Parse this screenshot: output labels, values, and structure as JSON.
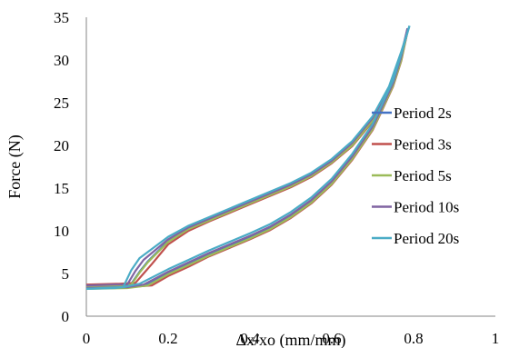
{
  "chart_data": {
    "type": "line",
    "title": "",
    "xlabel": "Δx/xo (mm/mm)",
    "ylabel": "Force (N)",
    "xlim": [
      0,
      1
    ],
    "ylim": [
      0,
      35
    ],
    "x_ticks": [
      "0",
      "0.2",
      "0.4",
      "0.6",
      "0.8",
      "1"
    ],
    "y_ticks": [
      "0",
      "5",
      "10",
      "15",
      "20",
      "25",
      "30",
      "35"
    ],
    "grid": false,
    "legend_position": "right",
    "series": [
      {
        "name": "Period 2s",
        "color": "#4472C4",
        "loading": [
          [
            0,
            3.6
          ],
          [
            0.08,
            3.7
          ],
          [
            0.11,
            3.8
          ],
          [
            0.13,
            5.2
          ],
          [
            0.15,
            6.4
          ],
          [
            0.2,
            8.8
          ],
          [
            0.25,
            10.3
          ],
          [
            0.3,
            11.3
          ],
          [
            0.35,
            12.3
          ],
          [
            0.4,
            13.3
          ],
          [
            0.45,
            14.3
          ],
          [
            0.5,
            15.3
          ],
          [
            0.55,
            16.5
          ],
          [
            0.6,
            18.1
          ],
          [
            0.65,
            20.2
          ],
          [
            0.7,
            23.1
          ],
          [
            0.74,
            26.6
          ],
          [
            0.77,
            30.6
          ],
          [
            0.785,
            33.6
          ]
        ],
        "unloading": [
          [
            0.785,
            33.6
          ],
          [
            0.77,
            30.3
          ],
          [
            0.75,
            27.2
          ],
          [
            0.72,
            24.1
          ],
          [
            0.7,
            22.1
          ],
          [
            0.65,
            18.6
          ],
          [
            0.6,
            15.7
          ],
          [
            0.55,
            13.5
          ],
          [
            0.5,
            11.8
          ],
          [
            0.45,
            10.4
          ],
          [
            0.4,
            9.3
          ],
          [
            0.35,
            8.3
          ],
          [
            0.3,
            7.3
          ],
          [
            0.25,
            6.2
          ],
          [
            0.2,
            5.1
          ],
          [
            0.15,
            3.7
          ],
          [
            0.1,
            3.4
          ],
          [
            0,
            3.3
          ]
        ]
      },
      {
        "name": "Period 3s",
        "color": "#C0504D",
        "loading": [
          [
            0,
            3.7
          ],
          [
            0.08,
            3.8
          ],
          [
            0.12,
            3.9
          ],
          [
            0.14,
            5.0
          ],
          [
            0.16,
            6.1
          ],
          [
            0.2,
            8.4
          ],
          [
            0.25,
            10.0
          ],
          [
            0.3,
            11.1
          ],
          [
            0.35,
            12.1
          ],
          [
            0.4,
            13.1
          ],
          [
            0.45,
            14.1
          ],
          [
            0.5,
            15.1
          ],
          [
            0.55,
            16.3
          ],
          [
            0.6,
            17.9
          ],
          [
            0.65,
            19.9
          ],
          [
            0.7,
            22.8
          ],
          [
            0.74,
            26.3
          ],
          [
            0.77,
            30.2
          ],
          [
            0.785,
            33.3
          ]
        ],
        "unloading": [
          [
            0.785,
            33.3
          ],
          [
            0.77,
            29.9
          ],
          [
            0.75,
            26.9
          ],
          [
            0.72,
            23.8
          ],
          [
            0.7,
            21.8
          ],
          [
            0.65,
            18.3
          ],
          [
            0.6,
            15.4
          ],
          [
            0.55,
            13.2
          ],
          [
            0.5,
            11.5
          ],
          [
            0.45,
            10.1
          ],
          [
            0.4,
            9.0
          ],
          [
            0.35,
            8.0
          ],
          [
            0.3,
            7.0
          ],
          [
            0.25,
            5.8
          ],
          [
            0.2,
            4.7
          ],
          [
            0.16,
            3.6
          ],
          [
            0.1,
            3.4
          ],
          [
            0,
            3.4
          ]
        ]
      },
      {
        "name": "Period 5s",
        "color": "#9BBB59",
        "loading": [
          [
            0,
            3.5
          ],
          [
            0.08,
            3.6
          ],
          [
            0.11,
            3.7
          ],
          [
            0.13,
            5.1
          ],
          [
            0.15,
            6.3
          ],
          [
            0.2,
            8.7
          ],
          [
            0.25,
            10.2
          ],
          [
            0.3,
            11.2
          ],
          [
            0.35,
            12.2
          ],
          [
            0.4,
            13.2
          ],
          [
            0.45,
            14.2
          ],
          [
            0.5,
            15.2
          ],
          [
            0.55,
            16.4
          ],
          [
            0.6,
            18.0
          ],
          [
            0.65,
            20.0
          ],
          [
            0.7,
            22.9
          ],
          [
            0.74,
            26.3
          ],
          [
            0.77,
            30.3
          ],
          [
            0.785,
            33.4
          ]
        ],
        "unloading": [
          [
            0.785,
            33.4
          ],
          [
            0.77,
            30.0
          ],
          [
            0.75,
            27.0
          ],
          [
            0.72,
            23.9
          ],
          [
            0.7,
            21.9
          ],
          [
            0.65,
            18.4
          ],
          [
            0.6,
            15.5
          ],
          [
            0.55,
            13.3
          ],
          [
            0.5,
            11.6
          ],
          [
            0.45,
            10.2
          ],
          [
            0.4,
            9.1
          ],
          [
            0.35,
            8.1
          ],
          [
            0.3,
            7.1
          ],
          [
            0.25,
            6.0
          ],
          [
            0.2,
            4.9
          ],
          [
            0.15,
            3.6
          ],
          [
            0.1,
            3.3
          ],
          [
            0,
            3.2
          ]
        ]
      },
      {
        "name": "Period 10s",
        "color": "#8064A2",
        "loading": [
          [
            0,
            3.6
          ],
          [
            0.07,
            3.7
          ],
          [
            0.1,
            3.7
          ],
          [
            0.12,
            5.3
          ],
          [
            0.14,
            6.6
          ],
          [
            0.2,
            9.0
          ],
          [
            0.25,
            10.4
          ],
          [
            0.3,
            11.4
          ],
          [
            0.35,
            12.4
          ],
          [
            0.4,
            13.4
          ],
          [
            0.45,
            14.4
          ],
          [
            0.5,
            15.4
          ],
          [
            0.55,
            16.6
          ],
          [
            0.6,
            18.2
          ],
          [
            0.65,
            20.3
          ],
          [
            0.7,
            23.2
          ],
          [
            0.74,
            26.7
          ],
          [
            0.77,
            30.7
          ],
          [
            0.785,
            33.7
          ]
        ],
        "unloading": [
          [
            0.785,
            33.7
          ],
          [
            0.77,
            30.4
          ],
          [
            0.75,
            27.3
          ],
          [
            0.72,
            24.2
          ],
          [
            0.7,
            22.2
          ],
          [
            0.65,
            18.7
          ],
          [
            0.6,
            15.8
          ],
          [
            0.55,
            13.6
          ],
          [
            0.5,
            11.9
          ],
          [
            0.45,
            10.5
          ],
          [
            0.4,
            9.4
          ],
          [
            0.35,
            8.4
          ],
          [
            0.3,
            7.4
          ],
          [
            0.25,
            6.3
          ],
          [
            0.2,
            5.2
          ],
          [
            0.14,
            3.7
          ],
          [
            0.1,
            3.4
          ],
          [
            0,
            3.3
          ]
        ]
      },
      {
        "name": "Period 20s",
        "color": "#4BACC6",
        "loading": [
          [
            0,
            3.2
          ],
          [
            0.07,
            3.3
          ],
          [
            0.09,
            3.4
          ],
          [
            0.11,
            5.4
          ],
          [
            0.13,
            6.8
          ],
          [
            0.2,
            9.3
          ],
          [
            0.25,
            10.6
          ],
          [
            0.3,
            11.6
          ],
          [
            0.35,
            12.6
          ],
          [
            0.4,
            13.6
          ],
          [
            0.45,
            14.6
          ],
          [
            0.5,
            15.6
          ],
          [
            0.55,
            16.8
          ],
          [
            0.6,
            18.4
          ],
          [
            0.65,
            20.5
          ],
          [
            0.7,
            23.4
          ],
          [
            0.74,
            26.9
          ],
          [
            0.77,
            31.0
          ],
          [
            0.79,
            34.0
          ]
        ],
        "unloading": [
          [
            0.79,
            34.0
          ],
          [
            0.77,
            30.7
          ],
          [
            0.75,
            27.6
          ],
          [
            0.72,
            24.5
          ],
          [
            0.7,
            22.5
          ],
          [
            0.65,
            19.0
          ],
          [
            0.6,
            16.1
          ],
          [
            0.55,
            13.9
          ],
          [
            0.5,
            12.2
          ],
          [
            0.45,
            10.8
          ],
          [
            0.4,
            9.7
          ],
          [
            0.35,
            8.7
          ],
          [
            0.3,
            7.7
          ],
          [
            0.25,
            6.6
          ],
          [
            0.2,
            5.5
          ],
          [
            0.13,
            3.8
          ],
          [
            0.09,
            3.4
          ],
          [
            0,
            3.2
          ]
        ]
      }
    ]
  }
}
